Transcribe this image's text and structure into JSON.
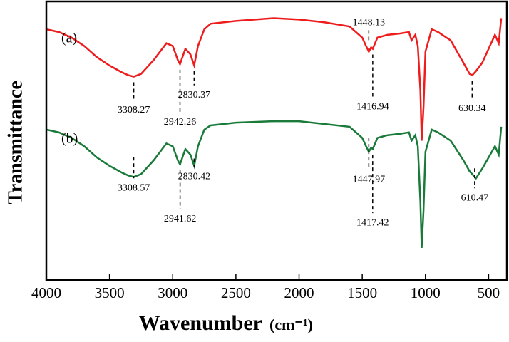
{
  "chart_data": {
    "type": "line",
    "xlabel": "Wavenumber",
    "xlabel_unit": "(cm⁻¹)",
    "ylabel": "Transmittance",
    "xlim": [
      4000,
      350
    ],
    "ylim": [
      0,
      100
    ],
    "xticks": [
      4000,
      3500,
      3000,
      2500,
      2000,
      1500,
      1000,
      500
    ],
    "x": [
      4000,
      3900,
      3800,
      3700,
      3600,
      3500,
      3400,
      3350,
      3308,
      3250,
      3150,
      3050,
      3000,
      2960,
      2942,
      2900,
      2860,
      2830,
      2800,
      2750,
      2700,
      2500,
      2200,
      2000,
      1800,
      1600,
      1500,
      1470,
      1448,
      1430,
      1417,
      1380,
      1300,
      1200,
      1130,
      1110,
      1080,
      1060,
      1040,
      1030,
      1015,
      1000,
      950,
      900,
      800,
      700,
      650,
      630,
      600,
      550,
      500,
      450,
      420,
      400
    ],
    "series": [
      {
        "name": "(a)",
        "color": "#ee1c1c",
        "values": [
          90,
          89,
          87,
          84,
          80,
          77,
          74.5,
          73.5,
          73,
          74,
          79,
          85,
          84,
          79,
          77.5,
          83,
          81,
          77,
          84,
          90,
          92,
          93,
          94,
          93.5,
          92.5,
          91,
          87,
          84,
          82,
          83.5,
          83,
          87,
          88,
          88.5,
          89,
          86,
          88,
          84,
          68,
          50,
          62,
          82,
          90,
          89,
          86,
          78,
          74,
          73.5,
          75,
          78,
          83,
          88,
          85,
          94
        ],
        "peaks": [
          3308.27,
          2942.26,
          2830.37,
          1448.13,
          1416.94,
          630.34
        ]
      },
      {
        "name": "(b)",
        "color": "#1a7a3a",
        "values": [
          54,
          53,
          51,
          48,
          44,
          41,
          38.5,
          37.5,
          37,
          38,
          43,
          49,
          48,
          43,
          41.5,
          47,
          45,
          41,
          48,
          54,
          55.5,
          56.5,
          57,
          57,
          56,
          55,
          51,
          48,
          46,
          47.5,
          47,
          51,
          52,
          52.5,
          53,
          50,
          52,
          48,
          28,
          11.5,
          25,
          46,
          54,
          53,
          50,
          43,
          39,
          38,
          36.5,
          40,
          44,
          48,
          45,
          55
        ],
        "peaks": [
          3308.57,
          2941.62,
          2830.42,
          1447.97,
          1417.42,
          610.47
        ]
      }
    ]
  }
}
